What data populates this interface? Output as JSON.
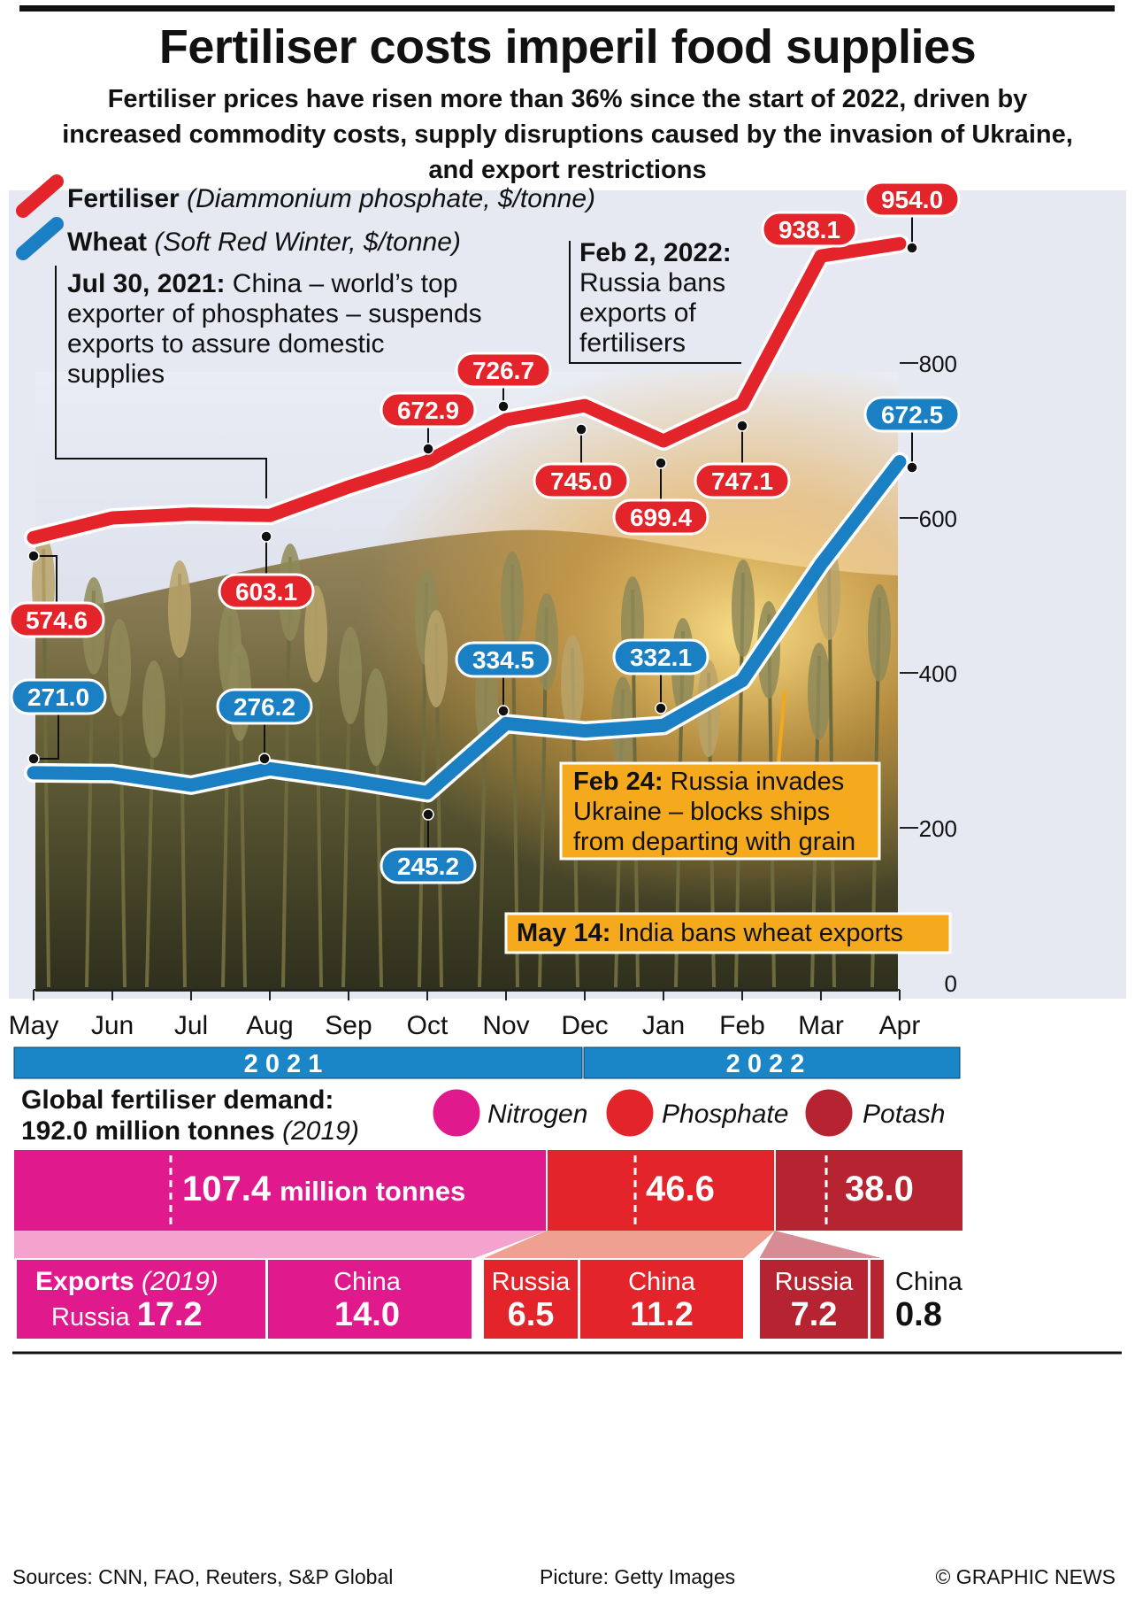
{
  "title": "Fertiliser costs imperil food supplies",
  "subtitle": "Fertiliser prices have risen more than 36% since the start of 2022, driven by increased commodity costs, supply disruptions caused by the invasion of Ukraine, and export restrictions",
  "legend": {
    "fertiliser_name": "Fertiliser",
    "fertiliser_desc": "(Diammonium phosphate, $/tonne)",
    "wheat_name": "Wheat",
    "wheat_desc": "(Soft Red Winter, $/tonne)"
  },
  "annotations": {
    "china_date": "Jul 30, 2021:",
    "china_line1": "China – world’s top",
    "china_line2": "exporter of phosphates – suspends",
    "china_line3": "exports to assure domestic",
    "china_line4": "supplies",
    "russia_date": "Feb 2, 2022:",
    "russia_line1": "Russia bans",
    "russia_line2": "exports of",
    "russia_line3": "fertilisers",
    "invade_date": "Feb 24:",
    "invade_line1": "Russia invades",
    "invade_line2": "Ukraine – blocks ships",
    "invade_line3": "from departing with grain",
    "india_date": "May 14:",
    "india_text": "India bans wheat exports"
  },
  "years": {
    "y2021": "2 0 2 1",
    "y2022": "2 0 2 2"
  },
  "chart_data": {
    "type": "line",
    "x": [
      "May",
      "Jun",
      "Jul",
      "Aug",
      "Sep",
      "Oct",
      "Nov",
      "Dec",
      "Jan",
      "Feb",
      "Mar",
      "Apr"
    ],
    "ylim": [
      0,
      1000
    ],
    "yticks": [
      0,
      200,
      400,
      600,
      800
    ],
    "series": [
      {
        "name": "Fertiliser",
        "color": "#e3252b",
        "values": [
          574.6,
          600,
          605,
          603.1,
          640,
          672.9,
          726.7,
          745.0,
          699.4,
          747.1,
          938.1,
          954.0
        ],
        "labels": [
          "574.6",
          "",
          "",
          "603.1",
          "",
          "672.9",
          "726.7",
          "745.0",
          "699.4",
          "747.1",
          "938.1",
          "954.0"
        ]
      },
      {
        "name": "Wheat",
        "color": "#1b7fc4",
        "values": [
          271.0,
          270,
          255,
          276.2,
          262,
          245.2,
          334.5,
          325,
          332.1,
          390,
          540,
          672.5
        ],
        "labels": [
          "271.0",
          "",
          "",
          "276.2",
          "",
          "245.2",
          "334.5",
          "",
          "332.1",
          "",
          "",
          "672.5"
        ]
      }
    ]
  },
  "demand": {
    "heading": "Global fertiliser demand:",
    "total": "192.0 million tonnes",
    "year": "(2019)",
    "legend": [
      "Nitrogen",
      "Phosphate",
      "Potash"
    ],
    "colors": {
      "nitrogen": "#e0198c",
      "phosphate": "#e3252b",
      "potash": "#b52430"
    },
    "nitrogen_value": "107.4",
    "nitrogen_unit": "million tonnes",
    "phosphate_value": "46.6",
    "potash_value": "38.0"
  },
  "exports": {
    "label": "Exports",
    "year": "(2019)",
    "nitrogen_russia_name": "Russia",
    "nitrogen_russia_value": "17.2",
    "nitrogen_china_name": "China",
    "nitrogen_china_value": "14.0",
    "phosphate_russia_name": "Russia",
    "phosphate_russia_value": "6.5",
    "phosphate_china_name": "China",
    "phosphate_china_value": "11.2",
    "potash_russia_name": "Russia",
    "potash_russia_value": "7.2",
    "potash_china_name": "China",
    "potash_china_value": "0.8"
  },
  "footer": {
    "sources": "Sources: CNN, FAO, Reuters, S&P Global",
    "picture": "Picture: Getty Images",
    "copyright": "© GRAPHIC NEWS"
  }
}
